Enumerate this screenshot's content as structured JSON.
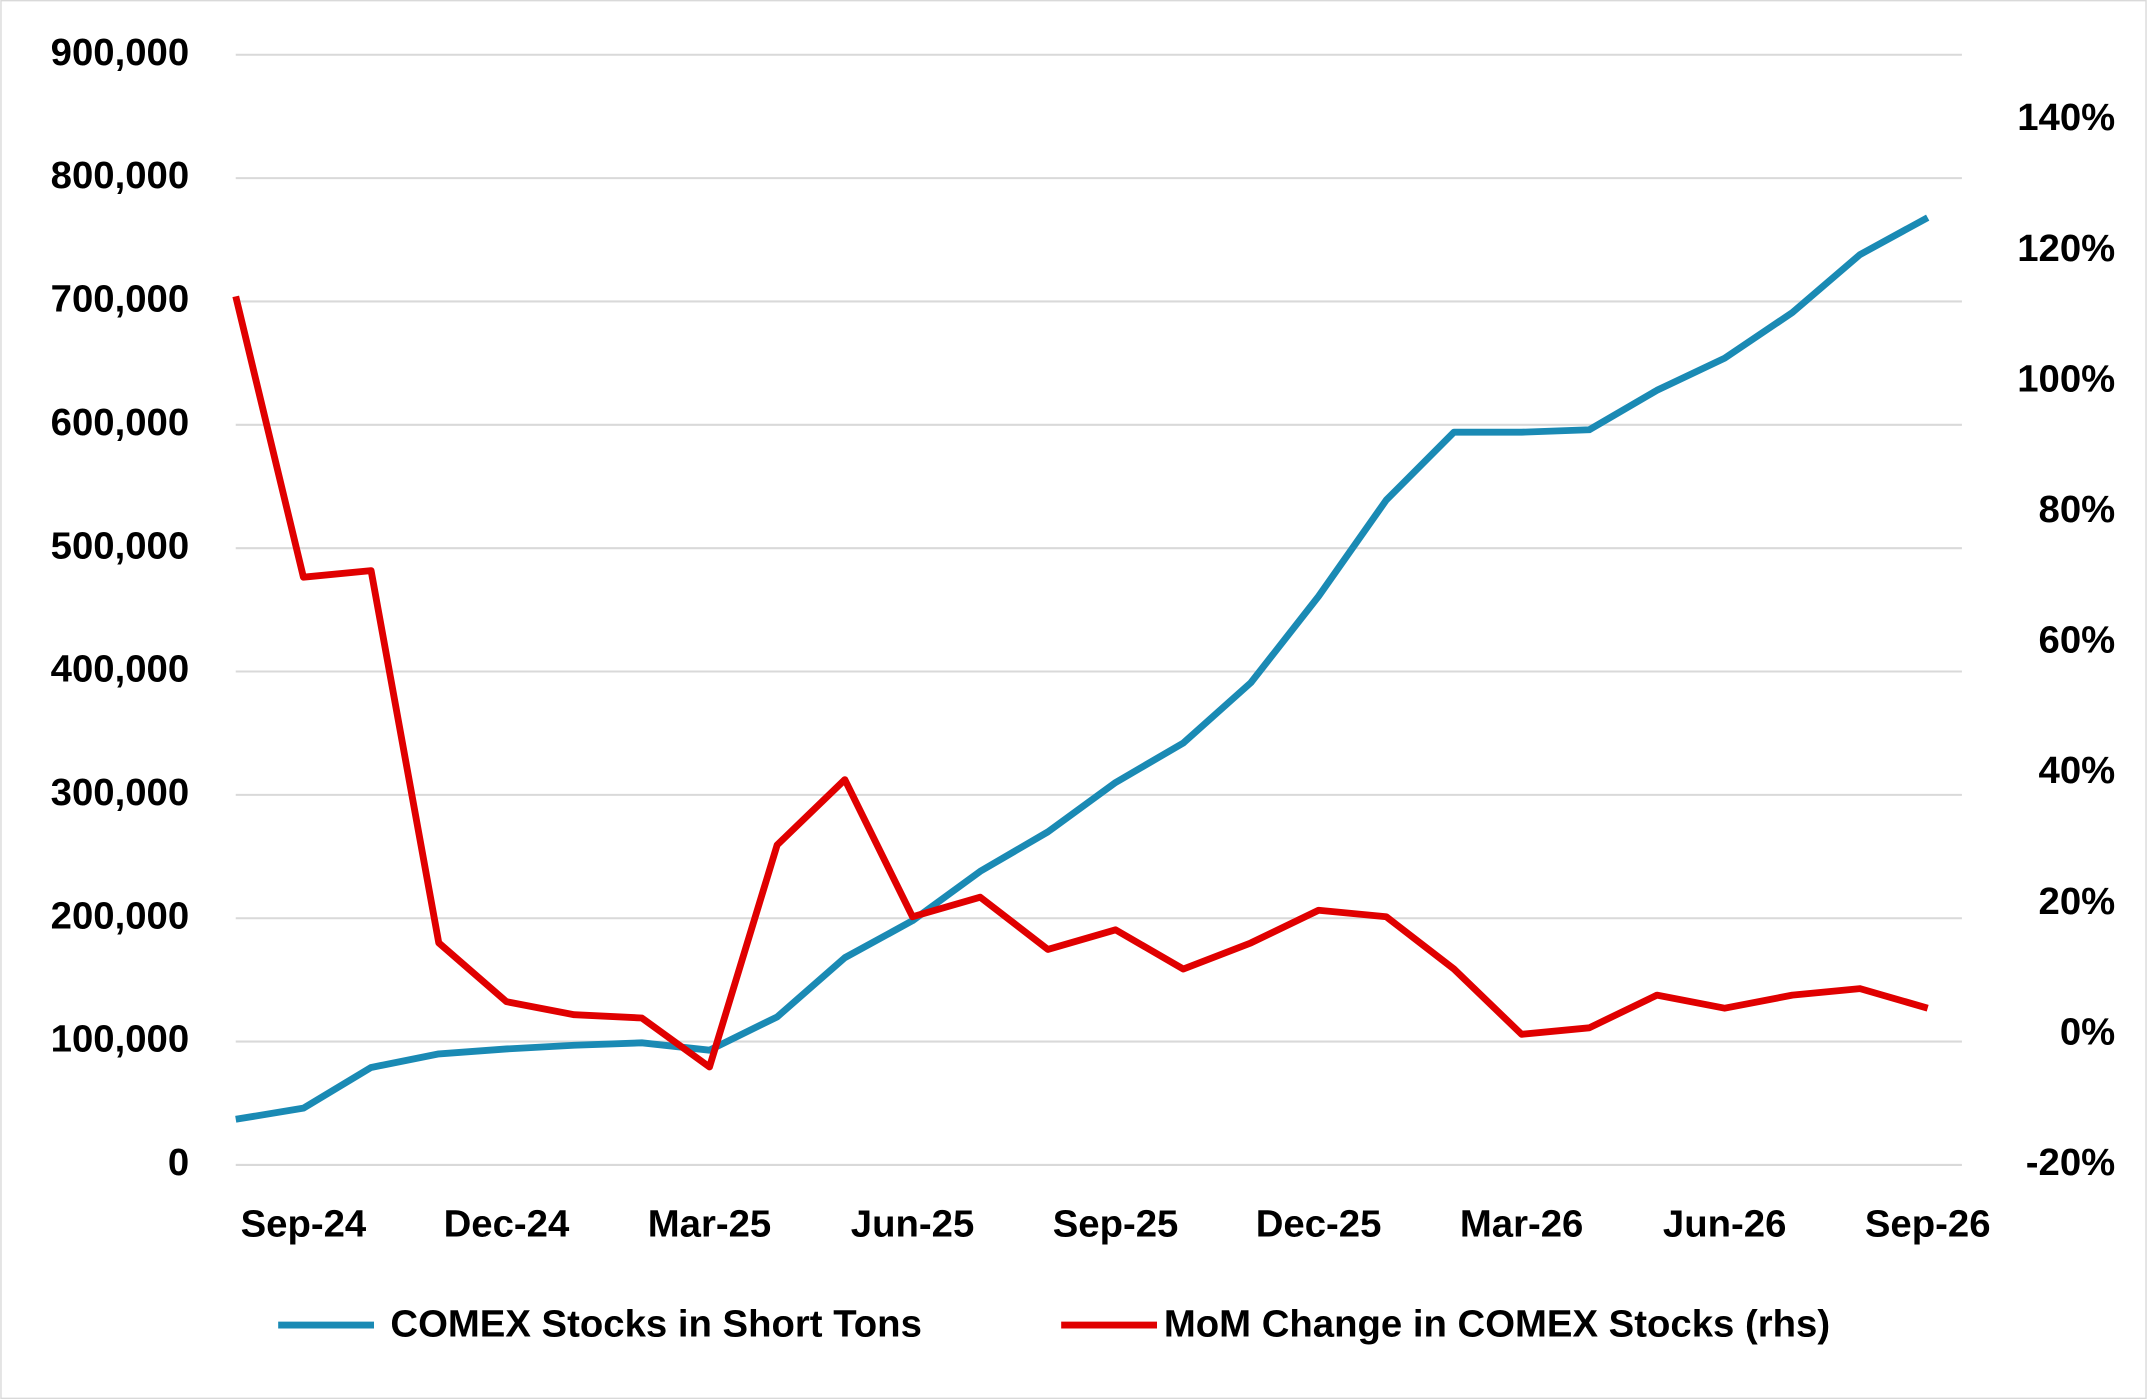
{
  "chart_data": {
    "type": "line",
    "categories": [
      null,
      "Sep-24",
      null,
      null,
      "Dec-24",
      null,
      null,
      "Mar-25",
      null,
      null,
      "Jun-25",
      null,
      null,
      "Sep-25",
      null,
      null,
      "Dec-25",
      null,
      null,
      "Mar-26",
      null,
      null,
      "Jun-26",
      null,
      null,
      "Sep-26"
    ],
    "series": [
      {
        "name": "COMEX Stocks in Short Tons",
        "color": "#1a8ab4",
        "values": [
          37000,
          46000,
          79000,
          90000,
          94000,
          97000,
          99000,
          93000,
          120000,
          168000,
          198000,
          238000,
          270000,
          310000,
          342000,
          391000,
          461000,
          539000,
          594000,
          594000,
          596000,
          628000,
          654000,
          691000,
          738000,
          768000
        ]
      },
      {
        "name": "MoM Change in COMEX Stocks (rhs)",
        "color": "#e00000",
        "axis": "y2",
        "values": [
          113,
          70,
          71,
          14,
          5,
          3,
          2.5,
          -5,
          29,
          39,
          18,
          21,
          13,
          16,
          10,
          14,
          19,
          18,
          10,
          0,
          1,
          6,
          4,
          6,
          7,
          4
        ]
      }
    ],
    "ylim": [
      0,
      900000
    ],
    "yticks": [
      0,
      {
        "value": 100000,
        "label": "100,000"
      },
      {
        "value": 200000,
        "label": "200,000"
      },
      {
        "value": 300000,
        "label": "300,000"
      },
      {
        "value": 400000,
        "label": "400,000"
      },
      {
        "value": 500000,
        "label": "500,000"
      },
      {
        "value": 600000,
        "label": "600,000"
      },
      {
        "value": 700000,
        "label": "700,000"
      },
      {
        "value": 800000,
        "label": "800,000"
      },
      {
        "value": 900000,
        "label": "900,000"
      }
    ],
    "y2lim": [
      -20,
      150
    ],
    "y2ticks": [
      {
        "value": -20,
        "label": "-20%"
      },
      {
        "value": 0,
        "label": "0%"
      },
      {
        "value": 20,
        "label": "20%"
      },
      {
        "value": 40,
        "label": "40%"
      },
      {
        "value": 60,
        "label": "60%"
      },
      {
        "value": 80,
        "label": "80%"
      },
      {
        "value": 100,
        "label": "100%"
      },
      {
        "value": 120,
        "label": "120%"
      },
      {
        "value": 140,
        "label": "140%"
      }
    ],
    "grid": true,
    "legend": "bottom"
  }
}
